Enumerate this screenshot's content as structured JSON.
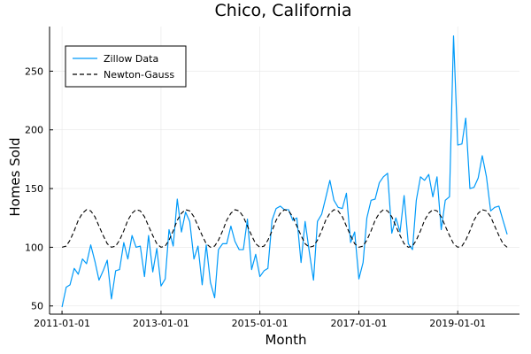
{
  "chart_data": {
    "type": "line",
    "title": "Chico, California",
    "xlabel": "Month",
    "ylabel": "Homes Sold",
    "x_start": "2011-01-01",
    "x_end": "2020-01-01",
    "xlim": [
      "2010-10-01",
      "2020-04-01"
    ],
    "ylim": [
      43,
      288
    ],
    "x_ticks": [
      "2011-01-01",
      "2013-01-01",
      "2015-01-01",
      "2017-01-01",
      "2019-01-01"
    ],
    "y_ticks": [
      50,
      100,
      150,
      200,
      250
    ],
    "grid": true,
    "legend_position": "top-left",
    "series": [
      {
        "name": "Zillow Data",
        "color": "#009af9",
        "style": "solid",
        "values": [
          49,
          66,
          68,
          82,
          77,
          90,
          86,
          102,
          88,
          72,
          80,
          89,
          56,
          80,
          81,
          104,
          90,
          110,
          100,
          101,
          75,
          110,
          79,
          99,
          67,
          73,
          115,
          101,
          141,
          113,
          130,
          122,
          90,
          101,
          68,
          102,
          70,
          57,
          98,
          103,
          103,
          118,
          105,
          98,
          98,
          124,
          81,
          94,
          75,
          80,
          82,
          123,
          133,
          135,
          132,
          132,
          123,
          125,
          87,
          122,
          96,
          72,
          122,
          128,
          142,
          157,
          140,
          134,
          133,
          146,
          104,
          113,
          73,
          87,
          125,
          140,
          141,
          155,
          160,
          163,
          112,
          125,
          113,
          144,
          103,
          98,
          140,
          160,
          157,
          162,
          143,
          160,
          115,
          140,
          143,
          280,
          187,
          188,
          210,
          150,
          151,
          159,
          178,
          160,
          131,
          134,
          135,
          123,
          111
        ]
      },
      {
        "name": "Newton-Gauss",
        "color": "#000000",
        "style": "dashed",
        "baseline": 116,
        "amplitude": 16,
        "period_months": 12,
        "values": [
          100,
          101,
          106,
          114,
          123,
          129,
          132,
          131,
          126,
          118,
          110,
          103
        ]
      }
    ]
  }
}
